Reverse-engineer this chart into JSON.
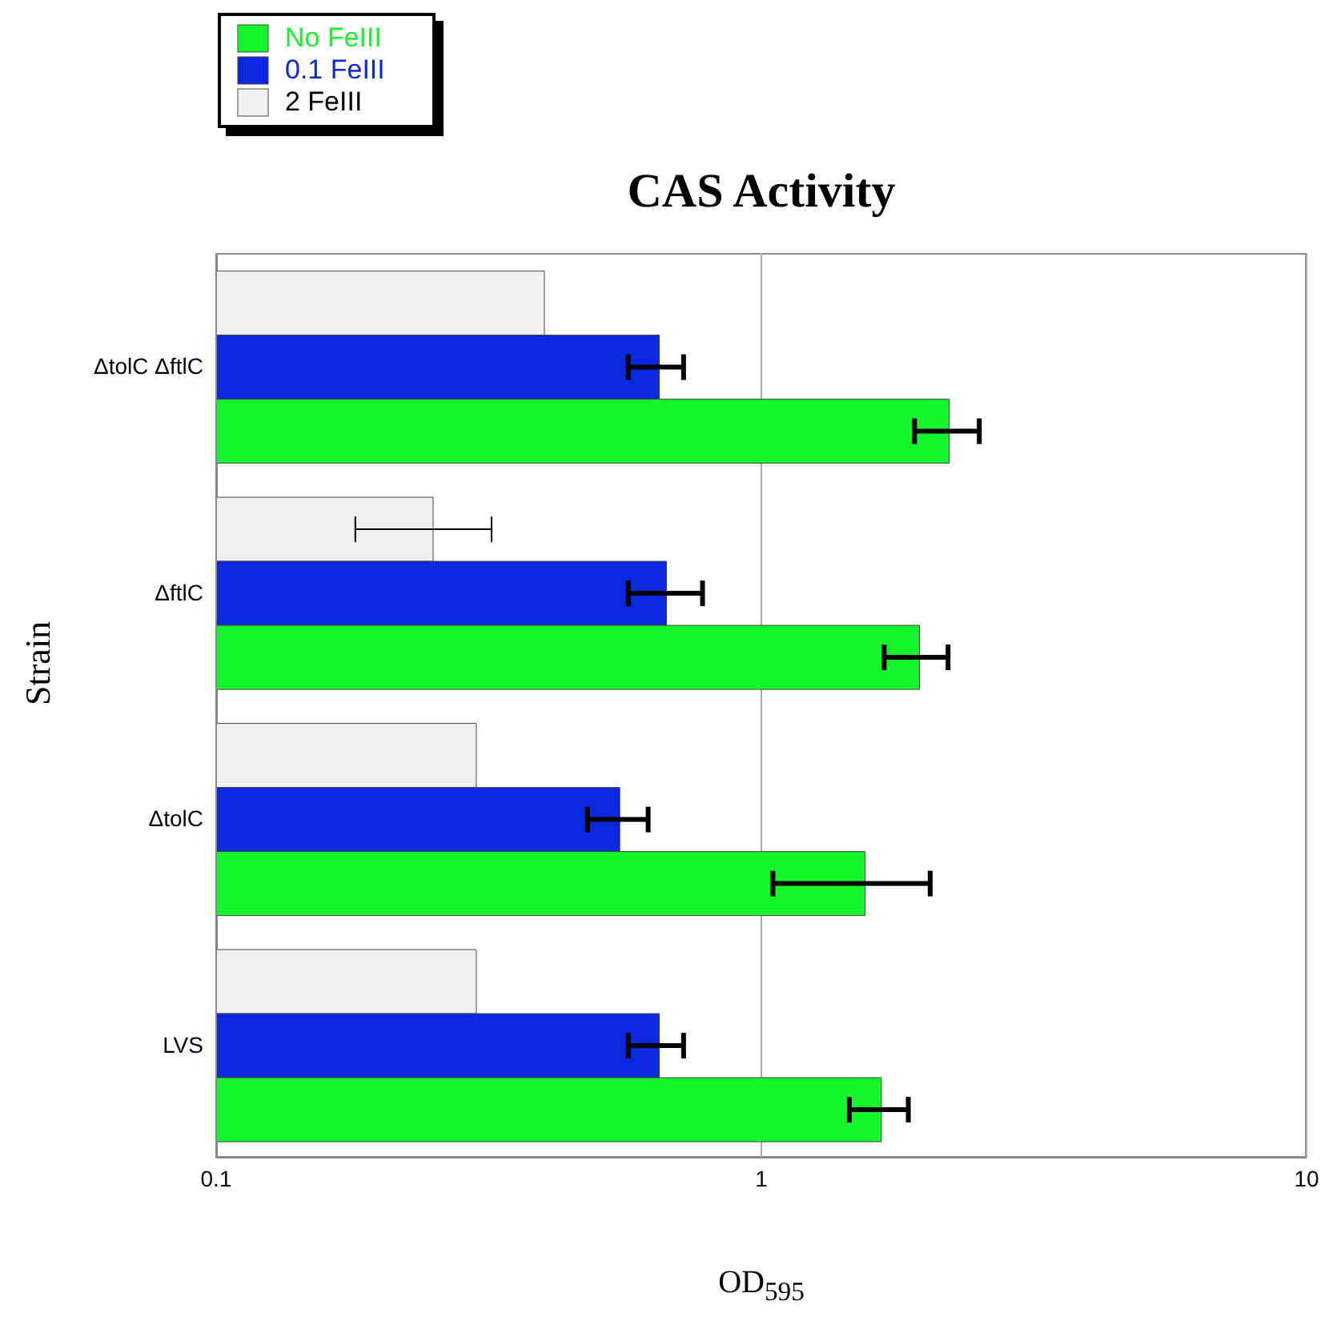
{
  "chart_data": {
    "type": "bar",
    "orientation": "horizontal",
    "title": "CAS Activity",
    "xlabel": "OD$_{595}$",
    "ylabel": "Strain",
    "categories": [
      "ΔtolC ΔftlC",
      "ΔftlC",
      "ΔtolC",
      "LVS"
    ],
    "series": [
      {
        "name": "No FeIII",
        "color": "#14f52a",
        "values": [
          2.21,
          1.95,
          1.55,
          1.66
        ],
        "errors": [
          [
            1.91,
            2.51
          ],
          [
            1.68,
            2.2
          ],
          [
            1.05,
            2.04
          ],
          [
            1.45,
            1.86
          ]
        ]
      },
      {
        "name": "0.1 FeIII",
        "color": "#0a28e0",
        "values": [
          0.65,
          0.67,
          0.55,
          0.65
        ],
        "errors": [
          [
            0.57,
            0.72
          ],
          [
            0.57,
            0.78
          ],
          [
            0.48,
            0.62
          ],
          [
            0.57,
            0.72
          ]
        ]
      },
      {
        "name": "2 FeIII",
        "color": "#f0f0f0",
        "values": [
          0.4,
          0.25,
          0.3,
          0.3
        ],
        "errors": [
          null,
          [
            0.18,
            0.32
          ],
          null,
          null
        ]
      }
    ],
    "log": "x",
    "xlim": [
      0.1,
      10
    ],
    "xticks": [
      0.1,
      1,
      10
    ],
    "grid": "x",
    "legend": "top left"
  }
}
